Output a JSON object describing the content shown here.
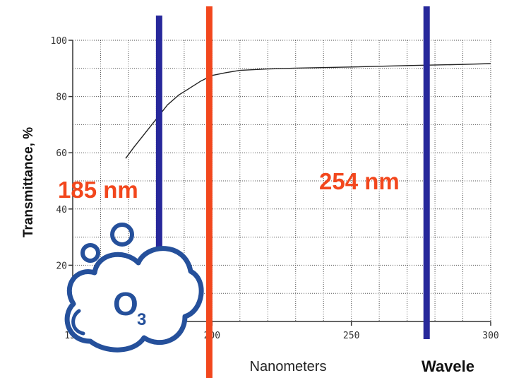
{
  "chart_data": {
    "type": "line",
    "title": "",
    "xlabel": "Nanometers",
    "ylabel": "Transmittance, %",
    "extra_label": "Wavele",
    "xlim": [
      150,
      300
    ],
    "ylim": [
      0,
      100
    ],
    "x_ticks": [
      150,
      200,
      250,
      300
    ],
    "x_tick_labels": [
      "150",
      "200",
      "250",
      "300"
    ],
    "y_ticks": [
      20,
      40,
      60,
      80,
      100
    ],
    "y_tick_labels": [
      "20",
      "40",
      "60",
      "80",
      "100"
    ],
    "grid": true,
    "series": [
      {
        "color": "#222222",
        "x": [
          169,
          172,
          176,
          180,
          184,
          188,
          192,
          196,
          200,
          205,
          210,
          220,
          230,
          250,
          270,
          290,
          300
        ],
        "y": [
          58,
          62,
          67,
          72,
          77,
          80.5,
          83,
          85.5,
          87.5,
          88.5,
          89.3,
          89.8,
          90.1,
          90.5,
          91,
          91.4,
          91.7
        ]
      }
    ],
    "markers": [
      {
        "x": 181,
        "color": "#27289b",
        "label": "185 nm",
        "label_color": "#f2471d"
      },
      {
        "x": 199,
        "color": "#f2471d"
      },
      {
        "x": 277,
        "color": "#27289b",
        "label": "254 nm",
        "label_color": "#f2471d"
      }
    ],
    "icon": {
      "name": "ozone-cloud-icon",
      "text_main": "O",
      "text_sub": "3",
      "color": "#25509b"
    }
  }
}
